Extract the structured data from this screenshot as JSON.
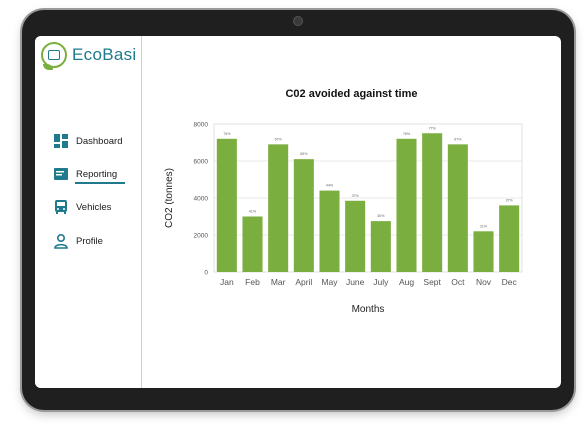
{
  "app": {
    "name": "EcoBasi"
  },
  "sidebar": {
    "items": [
      {
        "label": "Dashboard",
        "icon": "dashboard-icon"
      },
      {
        "label": "Reporting",
        "icon": "reporting-icon",
        "active": true
      },
      {
        "label": "Vehicles",
        "icon": "bus-icon"
      },
      {
        "label": "Profile",
        "icon": "user-icon"
      }
    ]
  },
  "colors": {
    "accent": "#1e7a8c",
    "bar": "#7aae3f",
    "logo_green": "#7aae3f"
  },
  "chart_data": {
    "type": "bar",
    "title": "C02 avoided against time",
    "xlabel": "Months",
    "ylabel": "CO2 (tonnes)",
    "ylim": [
      0,
      8000
    ],
    "yticks": [
      "0",
      "2000",
      "4000",
      "6000",
      "8000"
    ],
    "categories": [
      "Jan",
      "Feb",
      "Mar",
      "April",
      "May",
      "June",
      "July",
      "Aug",
      "Sept",
      "Oct",
      "Nov",
      "Dec"
    ],
    "values": [
      7200,
      3000,
      6900,
      6100,
      4400,
      3850,
      2750,
      7200,
      7500,
      6900,
      2200,
      3600
    ],
    "data_labels": [
      "75%",
      "41%",
      "67%",
      "65%",
      "44%",
      "37%",
      "30%",
      "76%",
      "77%",
      "67%",
      "31%",
      "37%"
    ],
    "grid": true
  }
}
